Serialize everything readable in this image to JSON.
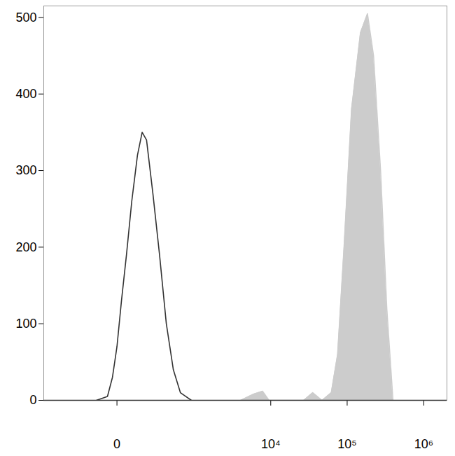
{
  "chart_data": {
    "type": "histogram",
    "log": "x",
    "xlim": [
      -800,
      2000000
    ],
    "xticks": [
      0,
      {
        "value": 10000,
        "label": "10⁴"
      },
      {
        "value": 100000,
        "label": "10⁵"
      },
      {
        "value": 1000000,
        "label": "10⁶"
      }
    ],
    "ylim": [
      0,
      515
    ],
    "yticks": [
      0,
      100,
      200,
      300,
      400,
      500
    ],
    "series": [
      {
        "type": "area",
        "color": "#cccccc",
        "x": [
          4000,
          5900,
          7800,
          9500,
          27000,
          35500,
          47000,
          62000,
          75000,
          91000,
          114000,
          149000,
          184000,
          221000,
          273000,
          329000,
          396000
        ],
        "values": [
          0,
          8,
          12,
          0,
          0,
          10,
          0,
          10,
          60,
          200,
          380,
          480,
          505,
          450,
          300,
          120,
          0
        ]
      },
      {
        "type": "line",
        "color": "#333333",
        "x": [
          -85,
          -33,
          -14.5,
          0,
          14.5,
          33,
          56,
          85,
          113,
          143,
          194,
          259,
          340,
          443,
          571,
          832
        ],
        "values": [
          0,
          5,
          30,
          70,
          130,
          190,
          260,
          320,
          350,
          340,
          270,
          190,
          100,
          40,
          10,
          0
        ]
      }
    ]
  }
}
